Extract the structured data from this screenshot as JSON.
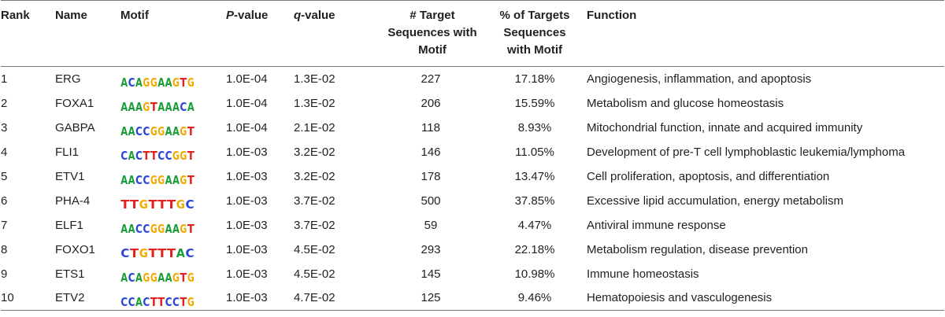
{
  "headers": {
    "rank": "Rank",
    "name": "Name",
    "motif": "Motif",
    "pvalue_italic": "P",
    "pvalue_rest": "-value",
    "qvalue_italic": "q",
    "qvalue_rest": "-value",
    "targets": "# Target Sequences with Motif",
    "percent": "% of Targets Sequences with Motif",
    "function": "Function"
  },
  "rows": [
    {
      "rank": "1",
      "name": "ERG",
      "motif": "ACAGGAAGTG",
      "p": "1.0E-04",
      "q": "1.3E-02",
      "targets": "227",
      "percent": "17.18%",
      "function": "Angiogenesis, inflammation, and apoptosis"
    },
    {
      "rank": "2",
      "name": "FOXA1",
      "motif": "AAAGTAAACA",
      "p": "1.0E-04",
      "q": "1.3E-02",
      "targets": "206",
      "percent": "15.59%",
      "function": "Metabolism and glucose homeostasis"
    },
    {
      "rank": "3",
      "name": "GABPA",
      "motif": "AACCGGAAGT",
      "p": "1.0E-04",
      "q": "2.1E-02",
      "targets": "118",
      "percent": "8.93%",
      "function": "Mitochondrial function, innate and acquired immunity"
    },
    {
      "rank": "4",
      "name": "FLI1",
      "motif": "CACTTCCGGT",
      "p": "1.0E-03",
      "q": "3.2E-02",
      "targets": "146",
      "percent": "11.05%",
      "function": "Development of pre-T cell lymphoblastic leukemia/lymphoma"
    },
    {
      "rank": "5",
      "name": "ETV1",
      "motif": "AACCGGAAGT",
      "p": "1.0E-03",
      "q": "3.2E-02",
      "targets": "178",
      "percent": "13.47%",
      "function": "Cell proliferation, apoptosis, and differentiation"
    },
    {
      "rank": "6",
      "name": "PHA-4",
      "motif": "TTGTTTGC",
      "p": "1.0E-03",
      "q": "3.7E-02",
      "targets": "500",
      "percent": "37.85%",
      "function": "Excessive lipid accumulation, energy metabolism"
    },
    {
      "rank": "7",
      "name": "ELF1",
      "motif": "AACCGGAAGT",
      "p": "1.0E-03",
      "q": "3.7E-02",
      "targets": "59",
      "percent": "4.47%",
      "function": "Antiviral immune response"
    },
    {
      "rank": "8",
      "name": "FOXO1",
      "motif": "CTGTTTAC",
      "p": "1.0E-03",
      "q": "4.5E-02",
      "targets": "293",
      "percent": "22.18%",
      "function": "Metabolism regulation, disease prevention"
    },
    {
      "rank": "9",
      "name": "ETS1",
      "motif": "ACAGGAAGTG",
      "p": "1.0E-03",
      "q": "4.5E-02",
      "targets": "145",
      "percent": "10.98%",
      "function": "Immune homeostasis"
    },
    {
      "rank": "10",
      "name": "ETV2",
      "motif": "CCACTTCCTG",
      "p": "1.0E-03",
      "q": "4.7E-02",
      "targets": "125",
      "percent": "9.46%",
      "function": "Hematopoiesis and vasculogenesis"
    }
  ],
  "colors": {
    "A": "#1a9e3a",
    "C": "#2b46d6",
    "G": "#f2a900",
    "T": "#e0231f"
  }
}
